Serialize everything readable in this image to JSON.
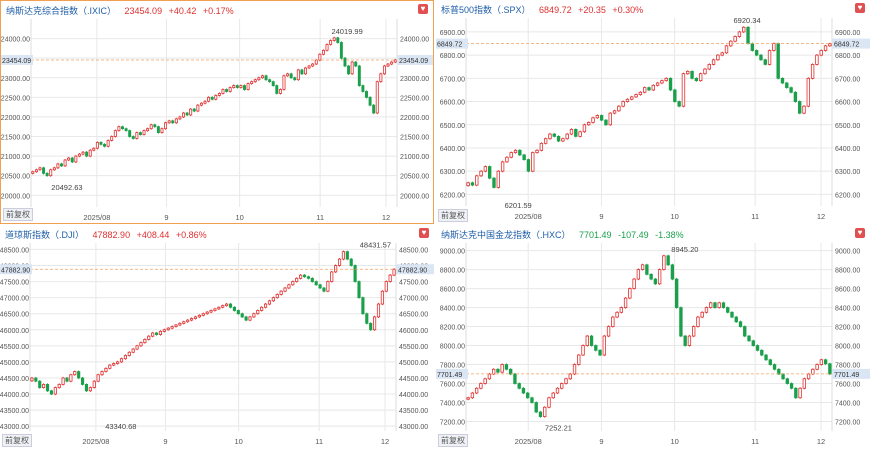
{
  "adjust_label": "前复权",
  "colors": {
    "up": "#e03030",
    "down": "#1aa04a",
    "grid": "#e8e8e8",
    "ref": "#f0a060",
    "label_bg": "#dbe6f5",
    "axis_text": "#555555"
  },
  "chart_data": [
    {
      "type": "candlestick",
      "title": {
        "name": "纳斯达克综合指数（.IXIC）",
        "price": "23454.09",
        "change": "+40.42",
        "pct": "+0.17%",
        "dir": "up"
      },
      "ylim": [
        19700,
        24500
      ],
      "yticks": [
        "24000.00",
        "23500.00",
        "23000.00",
        "22500.00",
        "22000.00",
        "21500.00",
        "21000.00",
        "20500.00",
        "20000.00"
      ],
      "ytick_values": [
        24000,
        23500,
        23000,
        22500,
        22000,
        21500,
        21000,
        20500,
        20000
      ],
      "xticks": [
        "2025/08",
        "9",
        "10",
        "11",
        "12"
      ],
      "xtick_fracs": [
        0.18,
        0.37,
        0.57,
        0.79,
        0.97
      ],
      "current": 23454.09,
      "current_label": "23454.09",
      "high": {
        "value": 24019.99,
        "label": "24019.99",
        "idx_frac": 0.81
      },
      "low": {
        "value": 20492.63,
        "label": "20492.63",
        "idx_frac": 0.05
      },
      "closes": [
        20600,
        20650,
        20700,
        20560,
        20500,
        20650,
        20700,
        20800,
        20750,
        20900,
        20950,
        20850,
        21000,
        21050,
        21100,
        21000,
        21150,
        21200,
        21350,
        21300,
        21250,
        21400,
        21500,
        21650,
        21750,
        21700,
        21650,
        21500,
        21450,
        21600,
        21550,
        21650,
        21700,
        21800,
        21750,
        21600,
        21700,
        21850,
        21900,
        21850,
        21950,
        22000,
        22100,
        22050,
        22200,
        22150,
        22300,
        22350,
        22400,
        22500,
        22450,
        22550,
        22600,
        22700,
        22650,
        22750,
        22800,
        22750,
        22800,
        22700,
        22850,
        22900,
        22950,
        23000,
        23050,
        22950,
        22900,
        22800,
        22600,
        22700,
        23050,
        23100,
        23000,
        22950,
        23200,
        23100,
        23250,
        23300,
        23350,
        23450,
        23600,
        23700,
        23850,
        23950,
        24019,
        23900,
        23500,
        23300,
        23100,
        23400,
        23300,
        22800,
        22650,
        22500,
        22300,
        22100,
        22900,
        23100,
        23300,
        23350,
        23400,
        23454
      ]
    },
    {
      "type": "candlestick",
      "title": {
        "name": "标普500指数（.SPX）",
        "price": "6849.72",
        "change": "+20.35",
        "pct": "+0.30%",
        "dir": "up"
      },
      "ylim": [
        6150,
        6960
      ],
      "yticks": [
        "6900.00",
        "6800.00",
        "6700.00",
        "6600.00",
        "6500.00",
        "6400.00",
        "6300.00",
        "6200.00"
      ],
      "ytick_values": [
        6900,
        6800,
        6700,
        6600,
        6500,
        6400,
        6300,
        6200
      ],
      "xticks": [
        "2025/08",
        "9",
        "10",
        "11",
        "12"
      ],
      "xtick_fracs": [
        0.17,
        0.37,
        0.57,
        0.79,
        0.97
      ],
      "current": 6849.72,
      "current_label": "6849.72",
      "high": {
        "value": 6920.34,
        "label": "6920.34",
        "idx_frac": 0.72
      },
      "low": {
        "value": 6201.59,
        "label": "6201.59",
        "idx_frac": 0.1
      },
      "closes": [
        6250,
        6240,
        6280,
        6300,
        6320,
        6270,
        6230,
        6300,
        6340,
        6360,
        6380,
        6390,
        6370,
        6350,
        6300,
        6380,
        6390,
        6420,
        6440,
        6460,
        6450,
        6430,
        6440,
        6460,
        6480,
        6450,
        6470,
        6500,
        6510,
        6530,
        6540,
        6520,
        6500,
        6550,
        6560,
        6580,
        6600,
        6610,
        6620,
        6630,
        6640,
        6660,
        6650,
        6670,
        6680,
        6690,
        6700,
        6650,
        6600,
        6580,
        6720,
        6730,
        6700,
        6690,
        6720,
        6740,
        6760,
        6780,
        6800,
        6810,
        6840,
        6860,
        6880,
        6900,
        6920,
        6850,
        6820,
        6800,
        6780,
        6760,
        6820,
        6850,
        6700,
        6680,
        6660,
        6640,
        6600,
        6550,
        6580,
        6700,
        6760,
        6800,
        6820,
        6840,
        6849
      ]
    },
    {
      "type": "candlestick",
      "title": {
        "name": "道琼斯指数（.DJI）",
        "price": "47882.90",
        "change": "+408.44",
        "pct": "+0.86%",
        "dir": "up"
      },
      "ylim": [
        42850,
        48700
      ],
      "yticks": [
        "48500.00",
        "48000.00",
        "47500.00",
        "47000.00",
        "46500.00",
        "46000.00",
        "45500.00",
        "45000.00",
        "44500.00",
        "44000.00",
        "43500.00",
        "43000.00"
      ],
      "ytick_values": [
        48500,
        48000,
        47500,
        47000,
        46500,
        46000,
        45500,
        45000,
        44500,
        44000,
        43500,
        43000
      ],
      "xticks": [
        "2025/08",
        "9",
        "10",
        "11",
        "12"
      ],
      "xtick_fracs": [
        0.18,
        0.37,
        0.57,
        0.79,
        0.97
      ],
      "current": 47882.9,
      "current_label": "47882.90",
      "high": {
        "value": 48431.57,
        "label": "48431.57",
        "idx_frac": 0.89
      },
      "low": {
        "value": 43340.68,
        "label": "43340.68",
        "idx_frac": 0.2
      },
      "closes": [
        44500,
        44400,
        44200,
        44300,
        44100,
        44000,
        44200,
        44300,
        44500,
        44400,
        44600,
        44700,
        44500,
        44300,
        44100,
        44200,
        44400,
        44600,
        44700,
        44800,
        44900,
        44950,
        45000,
        45100,
        45200,
        45300,
        45400,
        45500,
        45600,
        45700,
        45800,
        45900,
        45850,
        45950,
        46000,
        46050,
        46100,
        46150,
        46200,
        46250,
        46300,
        46350,
        46400,
        46450,
        46500,
        46550,
        46600,
        46650,
        46700,
        46750,
        46800,
        46700,
        46600,
        46500,
        46400,
        46300,
        46400,
        46500,
        46600,
        46700,
        46800,
        46900,
        47000,
        47100,
        47200,
        47300,
        47400,
        47500,
        47600,
        47700,
        47650,
        47600,
        47500,
        47400,
        47300,
        47200,
        47500,
        47800,
        48000,
        48200,
        48431,
        48200,
        48000,
        47500,
        47000,
        46500,
        46200,
        46000,
        46400,
        46800,
        47200,
        47500,
        47700,
        47883
      ]
    },
    {
      "type": "candlestick",
      "title": {
        "name": "纳斯达克中国金龙指数（.HXC）",
        "price": "7701.49",
        "change": "-107.49",
        "pct": "-1.38%",
        "dir": "down"
      },
      "ylim": [
        7100,
        9080
      ],
      "yticks": [
        "9000.00",
        "8800.00",
        "8600.00",
        "8400.00",
        "8200.00",
        "8000.00",
        "7800.00",
        "7600.00",
        "7400.00",
        "7200.00"
      ],
      "ytick_values": [
        9000,
        8800,
        8600,
        8400,
        8200,
        8000,
        7800,
        7600,
        7400,
        7200
      ],
      "xticks": [
        "2025/08",
        "9",
        "10",
        "11",
        "12"
      ],
      "xtick_fracs": [
        0.17,
        0.37,
        0.57,
        0.79,
        0.97
      ],
      "current": 7701.49,
      "current_label": "7701.49",
      "high": {
        "value": 8945.2,
        "label": "8945.20",
        "idx_frac": 0.55
      },
      "low": {
        "value": 7252.21,
        "label": "7252.21",
        "idx_frac": 0.21
      },
      "closes": [
        7450,
        7500,
        7550,
        7600,
        7650,
        7700,
        7750,
        7720,
        7800,
        7750,
        7700,
        7600,
        7550,
        7500,
        7450,
        7400,
        7300,
        7252,
        7350,
        7450,
        7500,
        7550,
        7600,
        7650,
        7700,
        7800,
        7900,
        8000,
        8100,
        8000,
        7950,
        7900,
        8100,
        8200,
        8300,
        8350,
        8400,
        8500,
        8600,
        8700,
        8800,
        8850,
        8750,
        8700,
        8650,
        8800,
        8945,
        8850,
        8700,
        8400,
        8100,
        8000,
        8100,
        8200,
        8300,
        8350,
        8400,
        8450,
        8400,
        8450,
        8400,
        8350,
        8300,
        8250,
        8200,
        8100,
        8050,
        8000,
        7950,
        7900,
        7850,
        7800,
        7750,
        7700,
        7650,
        7600,
        7550,
        7450,
        7550,
        7650,
        7700,
        7750,
        7800,
        7850,
        7808,
        7701
      ]
    }
  ]
}
